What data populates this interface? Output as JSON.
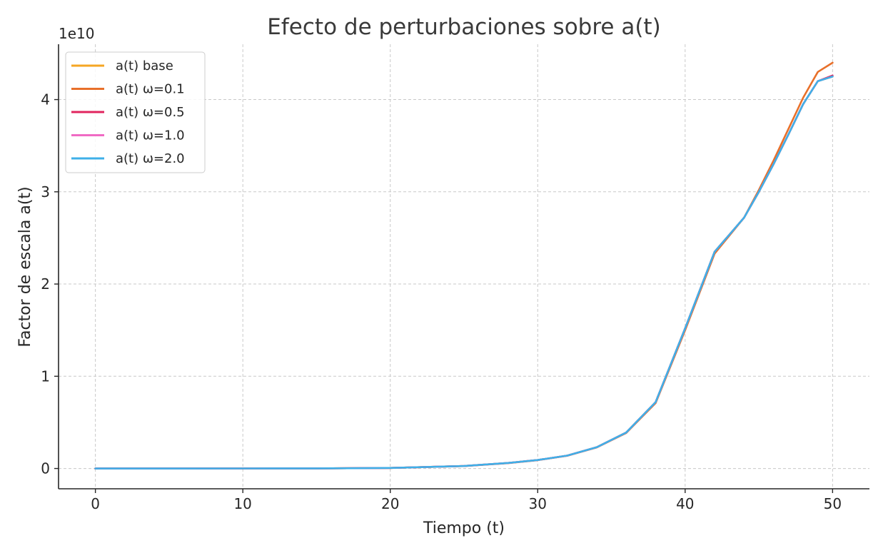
{
  "chart_data": {
    "type": "line",
    "title": "Efecto de perturbaciones sobre a(t)",
    "xlabel": "Tiempo (t)",
    "ylabel": "Factor de escala a(t)",
    "y_offset_label": "1e10",
    "xlim": [
      -2.5,
      52.5
    ],
    "ylim": [
      -0.22,
      4.6
    ],
    "y_scale_factor": 10000000000,
    "x_ticks": [
      0,
      10,
      20,
      30,
      40,
      50
    ],
    "x_tick_labels": [
      "0",
      "10",
      "20",
      "30",
      "40",
      "50"
    ],
    "y_ticks": [
      0,
      1,
      2,
      3,
      4
    ],
    "y_tick_labels": [
      "0",
      "1",
      "2",
      "3",
      "4"
    ],
    "grid": true,
    "legend_position": "top-left",
    "series": [
      {
        "name": "a(t) base",
        "color": "#f5a623",
        "x": [
          0,
          5,
          10,
          15,
          20,
          25,
          28,
          30,
          32,
          34,
          36,
          38,
          40,
          42,
          44,
          45,
          46,
          47,
          48,
          49,
          50
        ],
        "y": [
          0.0,
          6e-05,
          0.0003,
          0.0013,
          0.0059,
          0.027,
          0.06,
          0.092,
          0.14,
          0.23,
          0.39,
          0.72,
          1.52,
          2.35,
          2.72,
          3.0,
          3.3,
          3.62,
          3.95,
          4.2,
          4.25
        ]
      },
      {
        "name": "a(t) ω=0.1",
        "color": "#e8702a",
        "x": [
          0,
          5,
          10,
          15,
          20,
          25,
          28,
          30,
          32,
          34,
          36,
          38,
          40,
          42,
          44,
          45,
          46,
          47,
          48,
          49,
          50
        ],
        "y": [
          0.0,
          6e-05,
          0.0003,
          0.0013,
          0.0058,
          0.026,
          0.058,
          0.09,
          0.138,
          0.228,
          0.385,
          0.71,
          1.5,
          2.33,
          2.72,
          3.02,
          3.34,
          3.68,
          4.02,
          4.3,
          4.4
        ]
      },
      {
        "name": "a(t) ω=0.5",
        "color": "#e0245e",
        "x": [
          0,
          5,
          10,
          15,
          20,
          25,
          28,
          30,
          32,
          34,
          36,
          38,
          40,
          42,
          44,
          45,
          46,
          47,
          48,
          49,
          50
        ],
        "y": [
          0.0,
          6e-05,
          0.0003,
          0.0013,
          0.0059,
          0.027,
          0.06,
          0.092,
          0.14,
          0.23,
          0.39,
          0.72,
          1.52,
          2.35,
          2.72,
          3.0,
          3.3,
          3.62,
          3.95,
          4.2,
          4.26
        ]
      },
      {
        "name": "a(t) ω=1.0",
        "color": "#f06bc4",
        "x": [
          0,
          5,
          10,
          15,
          20,
          25,
          28,
          30,
          32,
          34,
          36,
          38,
          40,
          42,
          44,
          45,
          46,
          47,
          48,
          49,
          50
        ],
        "y": [
          0.0,
          6e-05,
          0.0003,
          0.0013,
          0.0059,
          0.027,
          0.06,
          0.092,
          0.14,
          0.23,
          0.39,
          0.72,
          1.52,
          2.35,
          2.72,
          3.0,
          3.3,
          3.62,
          3.95,
          4.2,
          4.25
        ]
      },
      {
        "name": "a(t) ω=2.0",
        "color": "#3fb0e8",
        "x": [
          0,
          5,
          10,
          15,
          20,
          25,
          28,
          30,
          32,
          34,
          36,
          38,
          40,
          42,
          44,
          45,
          46,
          47,
          48,
          49,
          50
        ],
        "y": [
          0.0,
          6e-05,
          0.0003,
          0.0013,
          0.0059,
          0.027,
          0.06,
          0.092,
          0.14,
          0.23,
          0.39,
          0.72,
          1.52,
          2.35,
          2.72,
          3.0,
          3.3,
          3.62,
          3.95,
          4.2,
          4.25
        ]
      }
    ]
  }
}
